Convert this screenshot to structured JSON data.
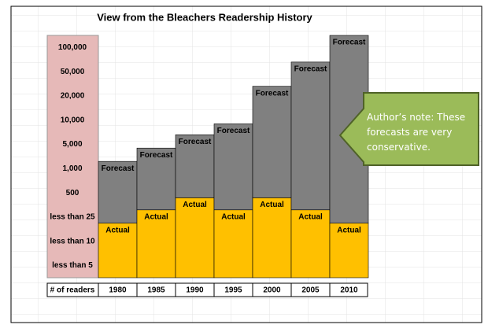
{
  "chart_data": {
    "type": "stacked-bar",
    "title": "View from the Bleachers Readership History",
    "ylabel": "# of readers",
    "categories": [
      "1980",
      "1985",
      "1990",
      "1995",
      "2000",
      "2005",
      "2010"
    ],
    "series": [
      {
        "name": "Actual",
        "color": "#ffc000",
        "values": [
          2.25,
          2.8,
          3.3,
          2.8,
          3.3,
          2.8,
          2.25
        ]
      },
      {
        "name": "Forecast",
        "color": "#808080",
        "values": [
          2.55,
          2.55,
          2.6,
          3.55,
          4.6,
          6.1,
          7.75
        ]
      }
    ],
    "ylim": [
      0,
      10
    ],
    "yticks": [
      {
        "value": 0.5,
        "label": "less than 5"
      },
      {
        "value": 1.5,
        "label": "less than 10"
      },
      {
        "value": 2.5,
        "label": "less than 25"
      },
      {
        "value": 3.5,
        "label": "500"
      },
      {
        "value": 4.5,
        "label": "1,000"
      },
      {
        "value": 5.5,
        "label": "5,000"
      },
      {
        "value": 6.5,
        "label": "10,000"
      },
      {
        "value": 7.5,
        "label": "20,000"
      },
      {
        "value": 8.5,
        "label": "50,000"
      },
      {
        "value": 9.5,
        "label": "100,000"
      }
    ],
    "grid": false,
    "annotation": "Author’s note: These forecasts are very conservative."
  }
}
